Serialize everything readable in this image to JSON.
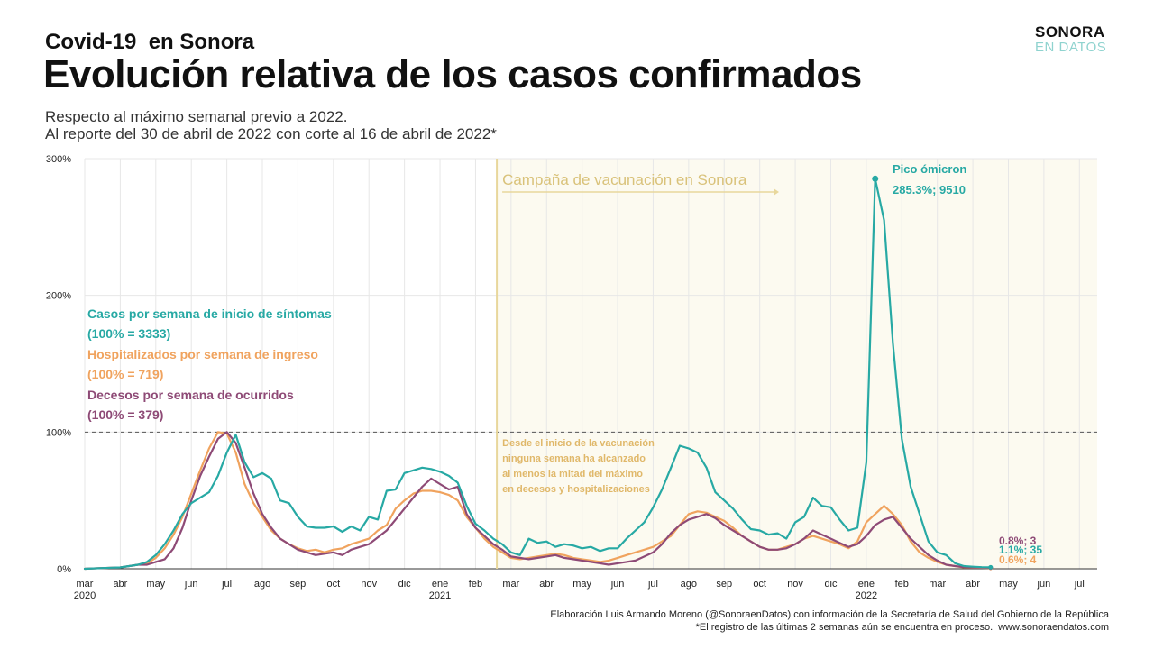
{
  "header": {
    "kicker": "Covid-19  en Sonora",
    "title": "Evolución relativa de los casos confirmados",
    "subtitle1": "Respecto al máximo semanal previo a 2022.",
    "subtitle2": "Al reporte del 30 de abril de 2022 con corte al 16 de abril de 2022*"
  },
  "logo": {
    "top": "SONORA",
    "bottom": "EN DATOS"
  },
  "footer": {
    "line1": "Elaboración Luis Armando Moreno (@SonoraenDatos) con información de la Secretaría de Salud del Gobierno de la República",
    "line2": "*El registro de las últimas 2 semanas aún se encuentra en proceso.| www.sonoraendatos.com"
  },
  "colors": {
    "cases": "#27a9a4",
    "hosp": "#f0a35e",
    "deaths": "#8e4a76",
    "vaccine": "#e8d79c",
    "shade": "#fcfaf0",
    "grid": "#e7e7e7"
  },
  "chart_data": {
    "type": "line",
    "title": "Evolución relativa de los casos confirmados",
    "xlabel": "",
    "ylabel": "",
    "ylim": [
      0,
      300
    ],
    "xlim": [
      0,
      28.5
    ],
    "x_unit": "months since March 2020",
    "yticks": [
      "0%",
      "100%",
      "200%",
      "300%"
    ],
    "ytick_values": [
      0,
      100,
      200,
      300
    ],
    "reference_line": 100,
    "xticks": [
      {
        "x": 0,
        "label": "mar",
        "year": "2020"
      },
      {
        "x": 1,
        "label": "abr"
      },
      {
        "x": 2,
        "label": "may"
      },
      {
        "x": 3,
        "label": "jun"
      },
      {
        "x": 4,
        "label": "jul"
      },
      {
        "x": 5,
        "label": "ago"
      },
      {
        "x": 6,
        "label": "sep"
      },
      {
        "x": 7,
        "label": "oct"
      },
      {
        "x": 8,
        "label": "nov"
      },
      {
        "x": 9,
        "label": "dic"
      },
      {
        "x": 10,
        "label": "ene",
        "year": "2021"
      },
      {
        "x": 11,
        "label": "feb"
      },
      {
        "x": 12,
        "label": "mar"
      },
      {
        "x": 13,
        "label": "abr"
      },
      {
        "x": 14,
        "label": "may"
      },
      {
        "x": 15,
        "label": "jun"
      },
      {
        "x": 16,
        "label": "jul"
      },
      {
        "x": 17,
        "label": "ago"
      },
      {
        "x": 18,
        "label": "sep"
      },
      {
        "x": 19,
        "label": "oct"
      },
      {
        "x": 20,
        "label": "nov"
      },
      {
        "x": 21,
        "label": "dic"
      },
      {
        "x": 22,
        "label": "ene",
        "year": "2022"
      },
      {
        "x": 23,
        "label": "feb"
      },
      {
        "x": 24,
        "label": "mar"
      },
      {
        "x": 25,
        "label": "abr"
      },
      {
        "x": 26,
        "label": "may"
      },
      {
        "x": 27,
        "label": "jun"
      },
      {
        "x": 28,
        "label": "jul"
      }
    ],
    "vaccination": {
      "start_x": 11.6,
      "label": "Campaña de vacunación en Sonora",
      "note": [
        "Desde el inicio de la vacunación",
        "ninguna semana ha alcanzado",
        "al menos la mitad del máximo",
        "en decesos y hospitalizaciones"
      ]
    },
    "legend": [
      {
        "key": "cases",
        "label": "Casos por semana de inicio de síntomas",
        "sub": "(100% = 3333)"
      },
      {
        "key": "hosp",
        "label": "Hospitalizados por semana de ingreso",
        "sub": "(100% = 719)"
      },
      {
        "key": "deaths",
        "label": "Decesos por semana de ocurridos",
        "sub": "(100% = 379)"
      }
    ],
    "peak_annotation": {
      "x": 22.25,
      "y": 285.3,
      "title": "Pico ómicron",
      "value": "285.3%; 9510"
    },
    "end_labels": [
      {
        "key": "deaths",
        "text": "0.8%; 3"
      },
      {
        "key": "cases",
        "text": "1.1%; 35"
      },
      {
        "key": "hosp",
        "text": "0.6%; 4"
      }
    ],
    "series": [
      {
        "key": "cases",
        "name": "Casos por semana de inicio de síntomas",
        "x": [
          0,
          0.5,
          1,
          1.25,
          1.5,
          1.75,
          2,
          2.25,
          2.5,
          2.75,
          3,
          3.25,
          3.5,
          3.75,
          4,
          4.25,
          4.5,
          4.75,
          5,
          5.25,
          5.5,
          5.75,
          6,
          6.25,
          6.5,
          6.75,
          7,
          7.25,
          7.5,
          7.75,
          8,
          8.25,
          8.5,
          8.75,
          9,
          9.25,
          9.5,
          9.75,
          10,
          10.25,
          10.5,
          10.75,
          11,
          11.25,
          11.5,
          11.75,
          12,
          12.25,
          12.5,
          12.75,
          13,
          13.25,
          13.5,
          13.75,
          14,
          14.25,
          14.5,
          14.75,
          15,
          15.25,
          15.5,
          15.75,
          16,
          16.25,
          16.5,
          16.75,
          17,
          17.25,
          17.5,
          17.75,
          18,
          18.25,
          18.5,
          18.75,
          19,
          19.25,
          19.5,
          19.75,
          20,
          20.25,
          20.5,
          20.75,
          21,
          21.25,
          21.5,
          21.75,
          22,
          22.25,
          22.5,
          22.75,
          23,
          23.25,
          23.5,
          23.75,
          24,
          24.25,
          24.5,
          24.75,
          25,
          25.25,
          25.5
        ],
        "y": [
          0,
          0.5,
          1,
          2,
          3,
          5,
          10,
          18,
          28,
          40,
          48,
          52,
          56,
          68,
          85,
          98,
          78,
          67,
          70,
          66,
          50,
          48,
          38,
          31,
          30,
          30,
          31,
          27,
          31,
          28,
          38,
          36,
          57,
          58,
          70,
          72,
          74,
          73,
          71,
          68,
          63,
          46,
          33,
          28,
          22,
          18,
          12,
          10,
          22,
          19,
          20,
          16,
          18,
          17,
          15,
          16,
          13,
          15,
          15,
          22,
          28,
          34,
          45,
          58,
          74,
          90,
          88,
          85,
          74,
          56,
          50,
          44,
          36,
          29,
          28,
          25,
          26,
          22,
          34,
          38,
          52,
          46,
          45,
          36,
          28,
          30,
          78,
          285.3,
          255,
          165,
          95,
          60,
          40,
          20,
          12,
          10,
          4,
          2,
          1.5,
          1.2,
          1.1
        ]
      },
      {
        "key": "hosp",
        "name": "Hospitalizados por semana de ingreso",
        "x": [
          0,
          0.5,
          1,
          1.25,
          1.5,
          1.75,
          2,
          2.25,
          2.5,
          2.75,
          3,
          3.25,
          3.5,
          3.75,
          4,
          4.25,
          4.5,
          4.75,
          5,
          5.25,
          5.5,
          5.75,
          6,
          6.25,
          6.5,
          6.75,
          7,
          7.25,
          7.5,
          7.75,
          8,
          8.25,
          8.5,
          8.75,
          9,
          9.25,
          9.5,
          9.75,
          10,
          10.25,
          10.5,
          10.75,
          11,
          11.25,
          11.5,
          11.75,
          12,
          12.25,
          12.5,
          12.75,
          13,
          13.25,
          13.5,
          13.75,
          14,
          14.25,
          14.5,
          14.75,
          15,
          15.25,
          15.5,
          15.75,
          16,
          16.25,
          16.5,
          16.75,
          17,
          17.25,
          17.5,
          17.75,
          18,
          18.25,
          18.5,
          18.75,
          19,
          19.25,
          19.5,
          19.75,
          20,
          20.25,
          20.5,
          20.75,
          21,
          21.25,
          21.5,
          21.75,
          22,
          22.25,
          22.5,
          22.75,
          23,
          23.25,
          23.5,
          23.75,
          24,
          24.25,
          24.5,
          24.75,
          25,
          25.25,
          25.5
        ],
        "y": [
          0,
          0.5,
          1,
          2,
          3,
          4,
          8,
          15,
          25,
          38,
          55,
          72,
          88,
          100,
          99,
          85,
          62,
          48,
          38,
          28,
          22,
          18,
          15,
          13,
          14,
          12,
          14,
          15,
          18,
          20,
          22,
          28,
          32,
          44,
          50,
          55,
          57,
          57,
          56,
          54,
          50,
          38,
          30,
          22,
          16,
          12,
          8,
          7,
          8,
          9,
          10,
          11,
          10,
          8,
          7,
          6,
          5,
          6,
          8,
          10,
          12,
          14,
          16,
          20,
          24,
          32,
          40,
          42,
          41,
          38,
          35,
          30,
          24,
          20,
          16,
          14,
          14,
          16,
          18,
          22,
          24,
          22,
          20,
          18,
          15,
          20,
          34,
          40,
          46,
          40,
          32,
          20,
          12,
          8,
          5,
          3,
          2,
          1,
          0.8,
          0.7,
          0.6
        ]
      },
      {
        "key": "deaths",
        "name": "Decesos por semana de ocurridos",
        "x": [
          0,
          0.5,
          1,
          1.25,
          1.5,
          1.75,
          2,
          2.25,
          2.5,
          2.75,
          3,
          3.25,
          3.5,
          3.75,
          4,
          4.25,
          4.5,
          4.75,
          5,
          5.25,
          5.5,
          5.75,
          6,
          6.25,
          6.5,
          6.75,
          7,
          7.25,
          7.5,
          7.75,
          8,
          8.25,
          8.5,
          8.75,
          9,
          9.25,
          9.5,
          9.75,
          10,
          10.25,
          10.5,
          10.75,
          11,
          11.25,
          11.5,
          11.75,
          12,
          12.25,
          12.5,
          12.75,
          13,
          13.25,
          13.5,
          13.75,
          14,
          14.25,
          14.5,
          14.75,
          15,
          15.25,
          15.5,
          15.75,
          16,
          16.25,
          16.5,
          16.75,
          17,
          17.25,
          17.5,
          17.75,
          18,
          18.25,
          18.5,
          18.75,
          19,
          19.25,
          19.5,
          19.75,
          20,
          20.25,
          20.5,
          20.75,
          21,
          21.25,
          21.5,
          21.75,
          22,
          22.25,
          22.5,
          22.75,
          23,
          23.25,
          23.5,
          23.75,
          24,
          24.25,
          24.5,
          24.75,
          25,
          25.25,
          25.5
        ],
        "y": [
          0,
          0.5,
          1,
          2,
          3,
          3,
          5,
          7,
          15,
          30,
          50,
          68,
          82,
          95,
          100,
          92,
          74,
          55,
          40,
          30,
          22,
          18,
          14,
          12,
          10,
          11,
          12,
          10,
          14,
          16,
          18,
          23,
          28,
          36,
          44,
          52,
          60,
          66,
          62,
          58,
          60,
          40,
          30,
          24,
          18,
          14,
          9,
          8,
          7,
          8,
          9,
          10,
          8,
          7,
          6,
          5,
          4,
          3,
          4,
          5,
          6,
          9,
          12,
          18,
          26,
          32,
          36,
          38,
          40,
          37,
          32,
          28,
          24,
          20,
          16,
          14,
          14,
          15,
          18,
          22,
          28,
          25,
          22,
          19,
          16,
          18,
          24,
          32,
          36,
          38,
          30,
          22,
          16,
          10,
          6,
          3,
          2,
          1.2,
          1,
          0.9,
          0.8
        ]
      }
    ]
  }
}
